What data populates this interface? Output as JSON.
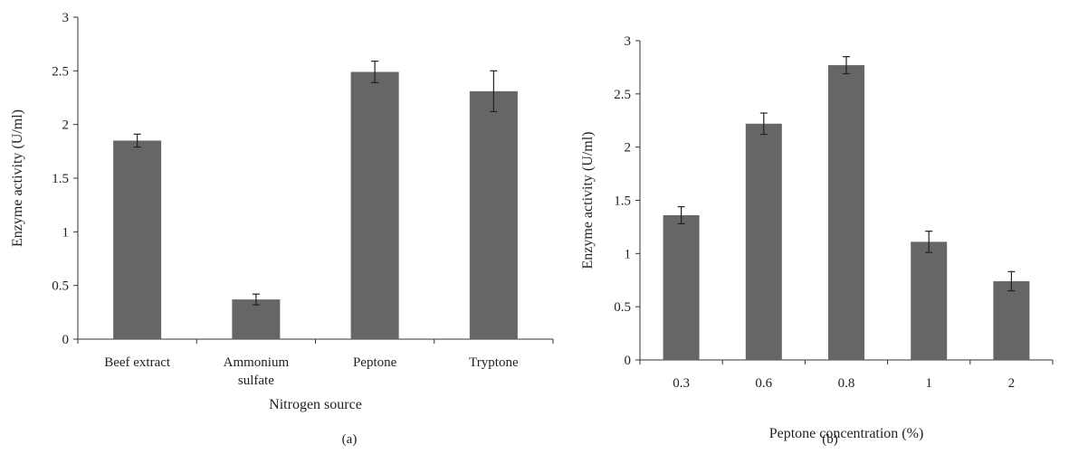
{
  "colors": {
    "bar": "#666666",
    "axis": "#333333",
    "error": "#222222",
    "text": "#222222"
  },
  "chart_data": [
    {
      "type": "bar",
      "panel_label": "(a)",
      "title": "",
      "xlabel": "Nitrogen source",
      "ylabel": "Enzyme activity (U/ml)",
      "categories": [
        "Beef extract",
        "Ammonium sulfate",
        "Peptone",
        "Tryptone"
      ],
      "category_lines": [
        [
          "Beef extract"
        ],
        [
          "Ammonium",
          "sulfate"
        ],
        [
          "Peptone"
        ],
        [
          "Tryptone"
        ]
      ],
      "values": [
        1.85,
        0.37,
        2.49,
        2.31
      ],
      "errors": [
        0.06,
        0.05,
        0.1,
        0.19
      ],
      "ylim": [
        0,
        3
      ],
      "yticks": [
        0,
        0.5,
        1,
        1.5,
        2,
        2.5,
        3
      ],
      "ytick_labels": [
        "0",
        "0.5",
        "1",
        "1.5",
        "2",
        "2.5",
        "3"
      ],
      "grid": false,
      "legend": "none"
    },
    {
      "type": "bar",
      "panel_label": "(b)",
      "title": "",
      "xlabel": "Peptone concentration (%)",
      "ylabel": "Enzyme activity (U/ml)",
      "categories": [
        "0.3",
        "0.6",
        "0.8",
        "1",
        "2"
      ],
      "category_lines": [
        [
          "0.3"
        ],
        [
          "0.6"
        ],
        [
          "0.8"
        ],
        [
          "1"
        ],
        [
          "2"
        ]
      ],
      "values": [
        1.36,
        2.22,
        2.77,
        1.11,
        0.74
      ],
      "errors": [
        0.08,
        0.1,
        0.08,
        0.1,
        0.09
      ],
      "ylim": [
        0,
        3
      ],
      "yticks": [
        0,
        0.5,
        1,
        1.5,
        2,
        2.5,
        3
      ],
      "ytick_labels": [
        "0",
        "0.5",
        "1",
        "1.5",
        "2",
        "2.5",
        "3"
      ],
      "grid": false,
      "legend": "none"
    }
  ]
}
